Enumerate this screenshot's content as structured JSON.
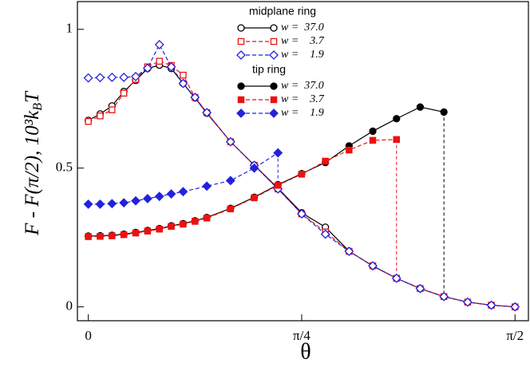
{
  "chart_data": {
    "type": "line",
    "xlabel": "θ",
    "ylabel": [
      "F - F(π/2), 10³k",
      "B",
      "T"
    ],
    "xlim": [
      -0.04,
      1.62
    ],
    "ylim": [
      -0.05,
      1.1
    ],
    "xticks": [
      0,
      {
        "value": 0.7854,
        "label": "π/4"
      },
      {
        "value": 1.5708,
        "label": "π/2"
      }
    ],
    "yticks": [
      0,
      0.5,
      1
    ],
    "legend_titles": [
      "midplane ring",
      "tip  ring"
    ],
    "series": [
      {
        "name": "w =  37.0",
        "color": "#000000",
        "marker": "circle",
        "filled": false,
        "dashed": false,
        "x": [
          0,
          0.0436,
          0.0873,
          0.1309,
          0.1745,
          0.2182,
          0.2618,
          0.3054,
          0.3491,
          0.3927,
          0.4363,
          0.5236,
          0.6109,
          0.6981,
          0.7854,
          0.8727,
          0.9599,
          1.0472,
          1.1345,
          1.2217,
          1.309,
          1.3963,
          1.4835,
          1.5708
        ],
        "values": [
          0.672,
          0.695,
          0.724,
          0.776,
          0.816,
          0.859,
          0.871,
          0.859,
          0.805,
          0.753,
          0.698,
          0.595,
          0.511,
          0.428,
          0.339,
          0.287,
          0.201,
          0.147,
          0.103,
          0.066,
          0.037,
          0.017,
          0.006,
          0
        ]
      },
      {
        "name": "w =    3.7",
        "color": "#ee1111",
        "marker": "square",
        "filled": false,
        "dashed": true,
        "x": [
          0,
          0.0436,
          0.0873,
          0.1309,
          0.1745,
          0.2182,
          0.2618,
          0.3054,
          0.3491,
          0.3927,
          0.4363,
          0.5236,
          0.6109,
          0.6981,
          0.7854,
          0.8727,
          0.9599,
          1.0472,
          1.1345,
          1.2217,
          1.309,
          1.3963,
          1.4835,
          1.5708
        ],
        "values": [
          0.668,
          0.688,
          0.71,
          0.77,
          0.82,
          0.865,
          0.885,
          0.87,
          0.835,
          0.755,
          0.7,
          0.595,
          0.51,
          0.425,
          0.335,
          0.27,
          0.2,
          0.148,
          0.103,
          0.066,
          0.037,
          0.017,
          0.006,
          0
        ]
      },
      {
        "name": "w =    1.9",
        "color": "#2222dd",
        "marker": "diamond",
        "filled": false,
        "dashed": true,
        "x": [
          0,
          0.0436,
          0.0873,
          0.1309,
          0.1745,
          0.2182,
          0.2618,
          0.3054,
          0.3491,
          0.3927,
          0.4363,
          0.5236,
          0.6109,
          0.6981,
          0.7854,
          0.8727,
          0.9599,
          1.0472,
          1.1345,
          1.2217,
          1.309,
          1.3963,
          1.4835,
          1.5708
        ],
        "values": [
          0.825,
          0.826,
          0.827,
          0.827,
          0.83,
          0.86,
          0.945,
          0.865,
          0.805,
          0.755,
          0.7,
          0.595,
          0.51,
          0.425,
          0.335,
          0.262,
          0.2,
          0.148,
          0.103,
          0.066,
          0.037,
          0.017,
          0.006,
          0
        ]
      },
      {
        "name": "w =  37.0",
        "color": "#000000",
        "marker": "circle",
        "filled": true,
        "dashed": false,
        "x": [
          0,
          0.0436,
          0.0873,
          0.1309,
          0.1745,
          0.2182,
          0.2618,
          0.3054,
          0.3491,
          0.3927,
          0.4363,
          0.5236,
          0.6109,
          0.6981,
          0.7854,
          0.8727,
          0.9599,
          1.0472,
          1.1345,
          1.2217,
          1.309
        ],
        "values": [
          0.255,
          0.256,
          0.258,
          0.262,
          0.268,
          0.275,
          0.282,
          0.292,
          0.3,
          0.31,
          0.322,
          0.355,
          0.395,
          0.44,
          0.48,
          0.52,
          0.58,
          0.633,
          0.678,
          0.72,
          0.702
        ]
      },
      {
        "name": "w =    3.7",
        "color": "#ee1111",
        "marker": "square",
        "filled": true,
        "dashed": true,
        "x": [
          0,
          0.0436,
          0.0873,
          0.1309,
          0.1745,
          0.2182,
          0.2618,
          0.3054,
          0.3491,
          0.3927,
          0.4363,
          0.5236,
          0.6109,
          0.6981,
          0.7854,
          0.8727,
          0.9599,
          1.0472,
          1.1345
        ],
        "values": [
          0.253,
          0.254,
          0.256,
          0.26,
          0.266,
          0.273,
          0.28,
          0.29,
          0.298,
          0.308,
          0.32,
          0.353,
          0.393,
          0.438,
          0.478,
          0.525,
          0.565,
          0.6,
          0.603
        ]
      },
      {
        "name": "w =    1.9",
        "color": "#2222dd",
        "marker": "diamond",
        "filled": true,
        "dashed": true,
        "x": [
          0,
          0.0436,
          0.0873,
          0.1309,
          0.1745,
          0.2182,
          0.2618,
          0.3054,
          0.3491,
          0.4363,
          0.5236,
          0.6109,
          0.6981
        ],
        "values": [
          0.37,
          0.37,
          0.372,
          0.375,
          0.382,
          0.39,
          0.398,
          0.407,
          0.415,
          0.435,
          0.455,
          0.5,
          0.555
        ]
      }
    ]
  }
}
